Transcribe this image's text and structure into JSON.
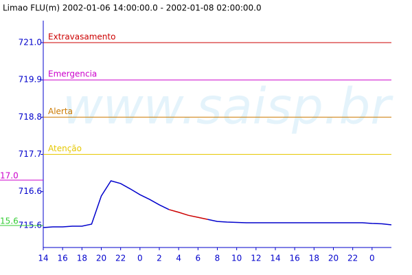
{
  "chart_data": {
    "type": "line",
    "title": "Limao FLU(m) 2002-01-06 14:00:00.0 - 2002-01-08 02:00:00.0",
    "watermark": "www.saisp.br",
    "x": [
      0,
      1,
      2,
      3,
      4,
      5,
      6,
      7,
      8,
      9,
      10,
      11,
      12,
      13,
      14,
      15,
      16,
      17,
      18,
      19,
      20,
      21,
      22,
      23,
      24,
      25,
      26,
      27,
      28,
      29,
      30,
      31,
      32,
      33,
      34,
      35,
      36
    ],
    "series": [
      {
        "color": "#0000cc",
        "values": [
          715.54,
          715.56,
          715.56,
          715.58,
          715.58,
          715.64,
          716.47,
          716.92,
          716.84,
          716.68,
          716.51,
          716.37,
          716.21,
          716.07,
          null,
          null,
          null,
          715.78,
          715.72,
          715.7,
          715.69,
          715.68,
          715.68,
          715.68,
          715.68,
          715.68,
          715.68,
          715.68,
          715.68,
          715.68,
          715.68,
          715.68,
          715.68,
          715.68,
          715.66,
          715.65,
          715.62
        ]
      },
      {
        "color": "#cc0000",
        "values": [
          null,
          null,
          null,
          null,
          null,
          null,
          null,
          null,
          null,
          null,
          null,
          null,
          null,
          716.07,
          715.99,
          715.9,
          715.84,
          715.78,
          null,
          null,
          null,
          null,
          null,
          null,
          null,
          null,
          null,
          null,
          null,
          null,
          null,
          null,
          null,
          null,
          null,
          null,
          null
        ]
      }
    ],
    "thresholds": [
      {
        "label": "Extravasamento",
        "value": 721.0,
        "color": "#cc0000"
      },
      {
        "label": "Emergencia",
        "value": 719.9,
        "color": "#cc00cc"
      },
      {
        "label": "Alerta",
        "value": 718.8,
        "color": "#cc7a00"
      },
      {
        "label": "Atenção",
        "value": 717.7,
        "color": "#e6c800"
      }
    ],
    "xlim": [
      0,
      36
    ],
    "xticks": [
      {
        "value": 0,
        "label": "14"
      },
      {
        "value": 2,
        "label": "16"
      },
      {
        "value": 4,
        "label": "18"
      },
      {
        "value": 6,
        "label": "20"
      },
      {
        "value": 8,
        "label": "22"
      },
      {
        "value": 10,
        "label": "0"
      },
      {
        "value": 12,
        "label": "2"
      },
      {
        "value": 14,
        "label": "4"
      },
      {
        "value": 16,
        "label": "6"
      },
      {
        "value": 18,
        "label": "8"
      },
      {
        "value": 20,
        "label": "10"
      },
      {
        "value": 22,
        "label": "12"
      },
      {
        "value": 24,
        "label": "14"
      },
      {
        "value": 26,
        "label": "16"
      },
      {
        "value": 28,
        "label": "18"
      },
      {
        "value": 30,
        "label": "20"
      },
      {
        "value": 32,
        "label": "22"
      },
      {
        "value": 34,
        "label": "0"
      }
    ],
    "ylim": [
      714.95,
      721.65
    ],
    "yticks": [
      {
        "value": 721,
        "label": "721.0"
      },
      719.9,
      718.8,
      717.7,
      716.6,
      715.6
    ],
    "y2lim": [
      14.92,
      21.92
    ],
    "y2ticks": [
      {
        "value": 17,
        "label": "17.0"
      },
      15.6
    ],
    "y2tick_colors": [
      "#cc00cc",
      "#33cc33"
    ],
    "axis_color": "#0000cc"
  }
}
